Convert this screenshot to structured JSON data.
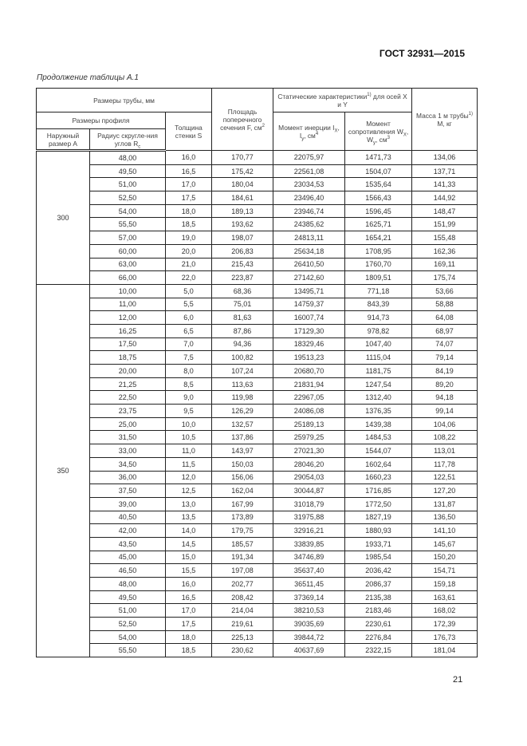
{
  "header": {
    "doc_code": "ГОСТ 32931—2015",
    "caption": "Продолжение таблицы А.1"
  },
  "table": {
    "headers": {
      "pipe_sizes": "Размеры трубы, мм",
      "profile_sizes": "Размеры профиля",
      "outer_size": "Наружный размер A",
      "corner_radius": "Радиус скругле-ния углов R",
      "corner_radius_sub": "c",
      "wall": "Толщина стенки S",
      "area": "Площадь поперечного сечения F, см",
      "area_sup": "2",
      "static": "Статические характеристики",
      "static_sup": "1)",
      "static_tail": " для осей X и Y",
      "inertia": "Момент инерции I",
      "inertia_sub1": "X",
      "inertia_mid": ", I",
      "inertia_sub2": "y",
      "inertia_unit": ", см",
      "inertia_sup": "4",
      "resist": "Момент сопротивления W",
      "resist_sub1": "X",
      "resist_mid": ", W",
      "resist_sub2": "y",
      "resist_unit": ", см",
      "resist_sup": "3",
      "mass": "Масса 1 м трубы",
      "mass_sup": "1)",
      "mass_tail": "M, кг"
    },
    "groups": [
      {
        "A": "300",
        "rows": [
          [
            "48,00",
            "16,0",
            "170,77",
            "22075,97",
            "1471,73",
            "134,06"
          ],
          [
            "49,50",
            "16,5",
            "175,42",
            "22561,08",
            "1504,07",
            "137,71"
          ],
          [
            "51,00",
            "17,0",
            "180,04",
            "23034,53",
            "1535,64",
            "141,33"
          ],
          [
            "52,50",
            "17,5",
            "184,61",
            "23496,40",
            "1566,43",
            "144,92"
          ],
          [
            "54,00",
            "18,0",
            "189,13",
            "23946,74",
            "1596,45",
            "148,47"
          ],
          [
            "55,50",
            "18,5",
            "193,62",
            "24385,62",
            "1625,71",
            "151,99"
          ],
          [
            "57,00",
            "19,0",
            "198,07",
            "24813,11",
            "1654,21",
            "155,48"
          ],
          [
            "60,00",
            "20,0",
            "206,83",
            "25634,18",
            "1708,95",
            "162,36"
          ],
          [
            "63,00",
            "21,0",
            "215,43",
            "26410,50",
            "1760,70",
            "169,11"
          ],
          [
            "66,00",
            "22,0",
            "223,87",
            "27142,60",
            "1809,51",
            "175,74"
          ]
        ]
      },
      {
        "A": "350",
        "rows": [
          [
            "10,00",
            "5,0",
            "68,36",
            "13495,71",
            "771,18",
            "53,66"
          ],
          [
            "11,00",
            "5,5",
            "75,01",
            "14759,37",
            "843,39",
            "58,88"
          ],
          [
            "12,00",
            "6,0",
            "81,63",
            "16007,74",
            "914,73",
            "64,08"
          ],
          [
            "16,25",
            "6,5",
            "87,86",
            "17129,30",
            "978,82",
            "68,97"
          ],
          [
            "17,50",
            "7,0",
            "94,36",
            "18329,46",
            "1047,40",
            "74,07"
          ],
          [
            "18,75",
            "7,5",
            "100,82",
            "19513,23",
            "1115,04",
            "79,14"
          ],
          [
            "20,00",
            "8,0",
            "107,24",
            "20680,70",
            "1181,75",
            "84,19"
          ],
          [
            "21,25",
            "8,5",
            "113,63",
            "21831,94",
            "1247,54",
            "89,20"
          ],
          [
            "22,50",
            "9,0",
            "119,98",
            "22967,05",
            "1312,40",
            "94,18"
          ],
          [
            "23,75",
            "9,5",
            "126,29",
            "24086,08",
            "1376,35",
            "99,14"
          ],
          [
            "25,00",
            "10,0",
            "132,57",
            "25189,13",
            "1439,38",
            "104,06"
          ],
          [
            "31,50",
            "10,5",
            "137,86",
            "25979,25",
            "1484,53",
            "108,22"
          ],
          [
            "33,00",
            "11,0",
            "143,97",
            "27021,30",
            "1544,07",
            "113,01"
          ],
          [
            "34,50",
            "11,5",
            "150,03",
            "28046,20",
            "1602,64",
            "117,78"
          ],
          [
            "36,00",
            "12,0",
            "156,06",
            "29054,03",
            "1660,23",
            "122,51"
          ],
          [
            "37,50",
            "12,5",
            "162,04",
            "30044,87",
            "1716,85",
            "127,20"
          ],
          [
            "39,00",
            "13,0",
            "167,99",
            "31018,79",
            "1772,50",
            "131,87"
          ],
          [
            "40,50",
            "13,5",
            "173,89",
            "31975,88",
            "1827,19",
            "136,50"
          ],
          [
            "42,00",
            "14,0",
            "179,75",
            "32916,21",
            "1880,93",
            "141,10"
          ],
          [
            "43,50",
            "14,5",
            "185,57",
            "33839,85",
            "1933,71",
            "145,67"
          ],
          [
            "45,00",
            "15,0",
            "191,34",
            "34746,89",
            "1985,54",
            "150,20"
          ],
          [
            "46,50",
            "15,5",
            "197,08",
            "35637,40",
            "2036,42",
            "154,71"
          ],
          [
            "48,00",
            "16,0",
            "202,77",
            "36511,45",
            "2086,37",
            "159,18"
          ],
          [
            "49,50",
            "16,5",
            "208,42",
            "37369,14",
            "2135,38",
            "163,61"
          ],
          [
            "51,00",
            "17,0",
            "214,04",
            "38210,53",
            "2183,46",
            "168,02"
          ],
          [
            "52,50",
            "17,5",
            "219,61",
            "39035,69",
            "2230,61",
            "172,39"
          ],
          [
            "54,00",
            "18,0",
            "225,13",
            "39844,72",
            "2276,84",
            "176,73"
          ],
          [
            "55,50",
            "18,5",
            "230,62",
            "40637,69",
            "2322,15",
            "181,04"
          ]
        ]
      }
    ]
  },
  "footer": {
    "page_number": "21"
  }
}
